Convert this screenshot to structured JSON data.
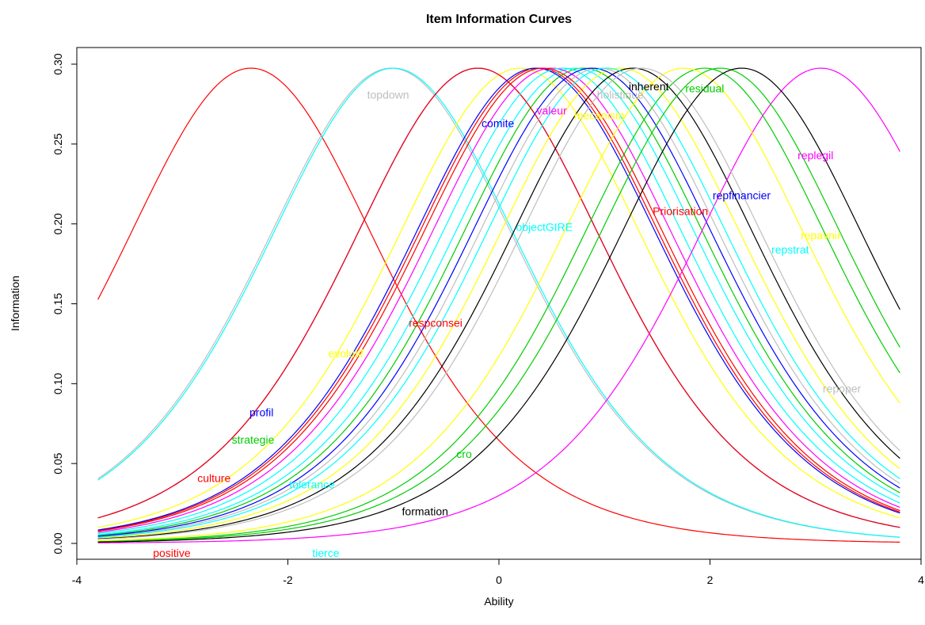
{
  "chart_data": {
    "type": "line",
    "title": "Item Information Curves",
    "xlabel": "Ability",
    "ylabel": "Information",
    "xlim": [
      -3.8,
      3.8
    ],
    "ylim": [
      0.0,
      0.3
    ],
    "x_ticks": [
      "-4",
      "-2",
      "0",
      "2",
      "4"
    ],
    "y_ticks": [
      "0.00",
      "0.05",
      "0.10",
      "0.15",
      "0.20",
      "0.25",
      "0.30"
    ],
    "grid": false,
    "peak_information": 0.297,
    "curve_equation": "I(theta) = 1.19 * exp(1.19*(theta-b)) / (1+exp(1.19*(theta-b)))^2",
    "discrimination": 1.19,
    "series": [
      {
        "name": "positive",
        "color": "#ff0000",
        "difficulty": -2.35,
        "label_x": -3.1,
        "label_y": -0.006
      },
      {
        "name": "topdown",
        "color": "#bebebe",
        "difficulty": -1.02,
        "label_x": -1.05,
        "label_y": 0.281
      },
      {
        "name": "tierce",
        "color": "#00ffff",
        "difficulty": -1.0,
        "label_x": -1.64,
        "label_y": -0.006
      },
      {
        "name": "profil",
        "color": "#0000ff",
        "difficulty": -0.2,
        "label_x": -2.25,
        "label_y": 0.082
      },
      {
        "name": "culture",
        "color": "#ff0000",
        "difficulty": 0.38,
        "label_x": -2.7,
        "label_y": 0.041
      },
      {
        "name": "strategie",
        "color": "#00cd00",
        "difficulty": 0.8,
        "label_x": -2.33,
        "label_y": 0.065
      },
      {
        "name": "evolutif",
        "color": "#ffff00",
        "difficulty": 0.2,
        "label_x": -1.45,
        "label_y": 0.119
      },
      {
        "name": "tolerance",
        "color": "#00ffff",
        "difficulty": 0.72,
        "label_x": -1.77,
        "label_y": 0.037
      },
      {
        "name": "respconsei",
        "color": "#ff0000",
        "difficulty": -0.2,
        "label_x": -0.6,
        "label_y": 0.138
      },
      {
        "name": "comite",
        "color": "#0000ff",
        "difficulty": 0.35,
        "label_x": -0.01,
        "label_y": 0.263
      },
      {
        "name": "valeur",
        "color": "#ff00ff",
        "difficulty": 0.5,
        "label_x": 0.5,
        "label_y": 0.271
      },
      {
        "name": "objectGIRE",
        "color": "#00ffff",
        "difficulty": 0.6,
        "label_x": 0.43,
        "label_y": 0.198
      },
      {
        "name": "mecanism",
        "color": "#ffff00",
        "difficulty": 1.15,
        "label_x": 0.95,
        "label_y": 0.268
      },
      {
        "name": "holistique",
        "color": "#bebebe",
        "difficulty": 0.95,
        "label_x": 1.15,
        "label_y": 0.281
      },
      {
        "name": "inherent",
        "color": "#000000",
        "difficulty": 1.27,
        "label_x": 1.42,
        "label_y": 0.286
      },
      {
        "name": "residual",
        "color": "#00cd00",
        "difficulty": 1.95,
        "label_x": 1.95,
        "label_y": 0.285
      },
      {
        "name": "Priorisation",
        "color": "#ff0000",
        "difficulty": 0.42,
        "label_x": 1.72,
        "label_y": 0.208
      },
      {
        "name": "repfinancier",
        "color": "#0000ff",
        "difficulty": 0.88,
        "label_x": 2.3,
        "label_y": 0.218
      },
      {
        "name": "replegil",
        "color": "#ff00ff",
        "difficulty": 3.05,
        "label_x": 3.0,
        "label_y": 0.243
      },
      {
        "name": "repstrat",
        "color": "#00ffff",
        "difficulty": 1.02,
        "label_x": 2.76,
        "label_y": 0.184
      },
      {
        "name": "repavnir",
        "color": "#ffff00",
        "difficulty": 1.75,
        "label_x": 3.05,
        "label_y": 0.193
      },
      {
        "name": "repoper",
        "color": "#bebebe",
        "difficulty": 1.35,
        "label_x": 3.25,
        "label_y": 0.097
      },
      {
        "name": "cro",
        "color": "#00cd00",
        "difficulty": 2.1,
        "label_x": -0.33,
        "label_y": 0.056
      },
      {
        "name": "formation",
        "color": "#000000",
        "difficulty": 2.3,
        "label_x": -0.7,
        "label_y": 0.02
      }
    ]
  }
}
